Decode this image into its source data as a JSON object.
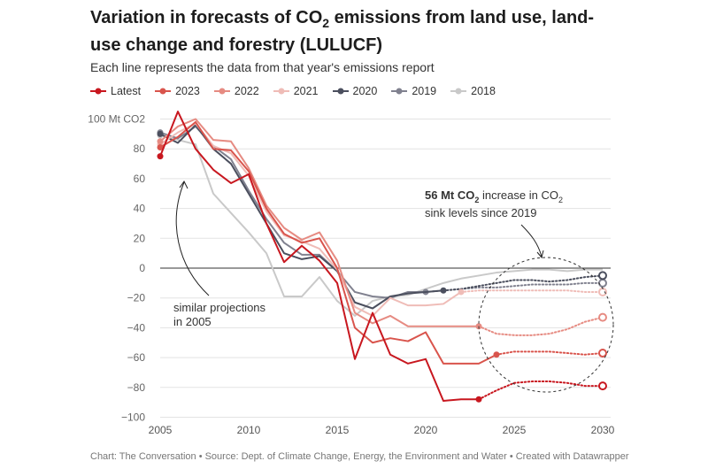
{
  "title": {
    "pre": "Variation in forecasts of CO",
    "sub": "2",
    "post": " emissions from land use, land-use change and forestry (LULUCF)"
  },
  "subtitle": "Each line represents the data from that year's emissions report",
  "footer": "Chart: The Conversation • Source: Dept. of Climate Change, Energy, the Environment and Water • Created with Datawrapper",
  "chart_data": {
    "type": "line",
    "ylabel": "100 Mt CO2",
    "ylim": [
      -100,
      100
    ],
    "xlim": [
      2005,
      2030
    ],
    "x_ticks": [
      "2005",
      "2010",
      "2015",
      "2020",
      "2025",
      "2030"
    ],
    "y_ticks": [
      "100 Mt CO2",
      "80",
      "60",
      "40",
      "20",
      "0",
      "−20",
      "−40",
      "−60",
      "−80",
      "−100"
    ],
    "y_tick_values": [
      100,
      80,
      60,
      40,
      20,
      0,
      -20,
      -40,
      -60,
      -80,
      -100
    ],
    "grid": true,
    "legend_position": "top",
    "series": [
      {
        "name": "2018",
        "color": "#c9c9c9",
        "actual": [
          [
            2005,
            89
          ],
          [
            2006,
            86
          ],
          [
            2007,
            83
          ],
          [
            2008,
            50
          ],
          [
            2009,
            37
          ],
          [
            2010,
            24
          ],
          [
            2011,
            10
          ],
          [
            2012,
            -19
          ],
          [
            2013,
            -19
          ],
          [
            2014,
            -6
          ],
          [
            2015,
            -22
          ],
          [
            2016,
            -32
          ],
          [
            2017,
            -22
          ],
          [
            2018,
            -19
          ],
          [
            2019,
            -18
          ],
          [
            2020,
            -14
          ],
          [
            2021,
            -10
          ],
          [
            2022,
            -7
          ],
          [
            2023,
            -5
          ],
          [
            2024,
            -3
          ],
          [
            2025,
            -2
          ],
          [
            2026,
            -1
          ],
          [
            2027,
            -1
          ],
          [
            2028,
            -2
          ],
          [
            2029,
            -1
          ],
          [
            2030,
            -1
          ]
        ],
        "projection": []
      },
      {
        "name": "2019",
        "color": "#80818f",
        "actual": [
          [
            2005,
            91
          ],
          [
            2006,
            87
          ],
          [
            2007,
            95
          ],
          [
            2008,
            82
          ],
          [
            2009,
            73
          ],
          [
            2010,
            52
          ],
          [
            2011,
            33
          ],
          [
            2012,
            17
          ],
          [
            2013,
            9
          ],
          [
            2014,
            9
          ],
          [
            2015,
            -2
          ],
          [
            2016,
            -16
          ],
          [
            2017,
            -19
          ],
          [
            2018,
            -20
          ],
          [
            2019,
            -16
          ],
          [
            2020,
            -16
          ]
        ],
        "projection": [
          [
            2020,
            -16
          ],
          [
            2021,
            -15
          ],
          [
            2022,
            -14
          ],
          [
            2023,
            -13
          ],
          [
            2024,
            -13
          ],
          [
            2025,
            -12
          ],
          [
            2026,
            -11
          ],
          [
            2027,
            -11
          ],
          [
            2028,
            -11
          ],
          [
            2029,
            -10
          ],
          [
            2030,
            -10
          ]
        ]
      },
      {
        "name": "2020",
        "color": "#4b4f5e",
        "actual": [
          [
            2005,
            90
          ],
          [
            2006,
            84
          ],
          [
            2007,
            96
          ],
          [
            2008,
            80
          ],
          [
            2009,
            70
          ],
          [
            2010,
            50
          ],
          [
            2011,
            30
          ],
          [
            2012,
            10
          ],
          [
            2013,
            6
          ],
          [
            2014,
            8
          ],
          [
            2015,
            -2
          ],
          [
            2016,
            -23
          ],
          [
            2017,
            -27
          ],
          [
            2018,
            -19
          ],
          [
            2019,
            -17
          ],
          [
            2020,
            -16
          ],
          [
            2021,
            -15
          ]
        ],
        "projection": [
          [
            2021,
            -15
          ],
          [
            2022,
            -14
          ],
          [
            2023,
            -12
          ],
          [
            2024,
            -10
          ],
          [
            2025,
            -8
          ],
          [
            2026,
            -8
          ],
          [
            2027,
            -9
          ],
          [
            2028,
            -8
          ],
          [
            2029,
            -6
          ],
          [
            2030,
            -5
          ]
        ]
      },
      {
        "name": "2021",
        "color": "#efbcb7",
        "actual": [
          [
            2005,
            83
          ],
          [
            2006,
            91
          ],
          [
            2007,
            97
          ],
          [
            2008,
            82
          ],
          [
            2009,
            77
          ],
          [
            2010,
            62
          ],
          [
            2011,
            38
          ],
          [
            2012,
            22
          ],
          [
            2013,
            18
          ],
          [
            2014,
            13
          ],
          [
            2015,
            -1
          ],
          [
            2016,
            -26
          ],
          [
            2017,
            -32
          ],
          [
            2018,
            -20
          ],
          [
            2019,
            -25
          ],
          [
            2020,
            -25
          ],
          [
            2021,
            -24
          ],
          [
            2022,
            -16
          ]
        ],
        "projection": [
          [
            2022,
            -16
          ],
          [
            2023,
            -15
          ],
          [
            2024,
            -15
          ],
          [
            2025,
            -15
          ],
          [
            2026,
            -15
          ],
          [
            2027,
            -15
          ],
          [
            2028,
            -15
          ],
          [
            2029,
            -16
          ],
          [
            2030,
            -16
          ]
        ]
      },
      {
        "name": "2022",
        "color": "#e68b82",
        "actual": [
          [
            2005,
            85
          ],
          [
            2006,
            95
          ],
          [
            2007,
            100
          ],
          [
            2008,
            86
          ],
          [
            2009,
            85
          ],
          [
            2010,
            67
          ],
          [
            2011,
            42
          ],
          [
            2012,
            27
          ],
          [
            2013,
            19
          ],
          [
            2014,
            24
          ],
          [
            2015,
            5
          ],
          [
            2016,
            -30
          ],
          [
            2017,
            -37
          ],
          [
            2018,
            -32
          ],
          [
            2019,
            -39
          ],
          [
            2020,
            -39
          ],
          [
            2021,
            -39
          ],
          [
            2022,
            -39
          ],
          [
            2023,
            -39
          ]
        ],
        "projection": [
          [
            2023,
            -39
          ],
          [
            2024,
            -44
          ],
          [
            2025,
            -45
          ],
          [
            2026,
            -45
          ],
          [
            2027,
            -44
          ],
          [
            2028,
            -41
          ],
          [
            2029,
            -36
          ],
          [
            2030,
            -33
          ]
        ]
      },
      {
        "name": "2023",
        "color": "#d9544c",
        "actual": [
          [
            2005,
            81
          ],
          [
            2006,
            88
          ],
          [
            2007,
            98
          ],
          [
            2008,
            80
          ],
          [
            2009,
            79
          ],
          [
            2010,
            65
          ],
          [
            2011,
            40
          ],
          [
            2012,
            23
          ],
          [
            2013,
            17
          ],
          [
            2014,
            20
          ],
          [
            2015,
            0
          ],
          [
            2016,
            -40
          ],
          [
            2017,
            -50
          ],
          [
            2018,
            -47
          ],
          [
            2019,
            -49
          ],
          [
            2020,
            -43
          ],
          [
            2021,
            -64
          ],
          [
            2022,
            -64
          ],
          [
            2023,
            -64
          ],
          [
            2024,
            -58
          ]
        ],
        "projection": [
          [
            2024,
            -58
          ],
          [
            2025,
            -56
          ],
          [
            2026,
            -56
          ],
          [
            2027,
            -56
          ],
          [
            2028,
            -57
          ],
          [
            2029,
            -58
          ],
          [
            2030,
            -57
          ]
        ]
      },
      {
        "name": "Latest",
        "color": "#c8171f",
        "actual": [
          [
            2005,
            75
          ],
          [
            2006,
            105
          ],
          [
            2007,
            80
          ],
          [
            2008,
            66
          ],
          [
            2009,
            57
          ],
          [
            2010,
            63
          ],
          [
            2011,
            30
          ],
          [
            2012,
            4
          ],
          [
            2013,
            15
          ],
          [
            2014,
            5
          ],
          [
            2015,
            -10
          ],
          [
            2016,
            -61
          ],
          [
            2017,
            -30
          ],
          [
            2018,
            -58
          ],
          [
            2019,
            -64
          ],
          [
            2020,
            -61
          ],
          [
            2021,
            -89
          ],
          [
            2022,
            -88
          ],
          [
            2023,
            -88
          ]
        ],
        "projection": [
          [
            2023,
            -88
          ],
          [
            2024,
            -82
          ],
          [
            2025,
            -77
          ],
          [
            2026,
            -76
          ],
          [
            2027,
            -76
          ],
          [
            2028,
            -77
          ],
          [
            2029,
            -79
          ],
          [
            2030,
            -79
          ]
        ]
      }
    ],
    "legend_order": [
      "Latest",
      "2023",
      "2022",
      "2021",
      "2020",
      "2019",
      "2018"
    ],
    "annotations": {
      "similar": [
        "similar projections",
        "in 2005"
      ],
      "increase_bold": "56 Mt CO",
      "increase_bold_sub": "2",
      "increase_text": " increase in CO",
      "increase_sub": "2",
      "increase_line2": "sink levels since 2019"
    }
  }
}
